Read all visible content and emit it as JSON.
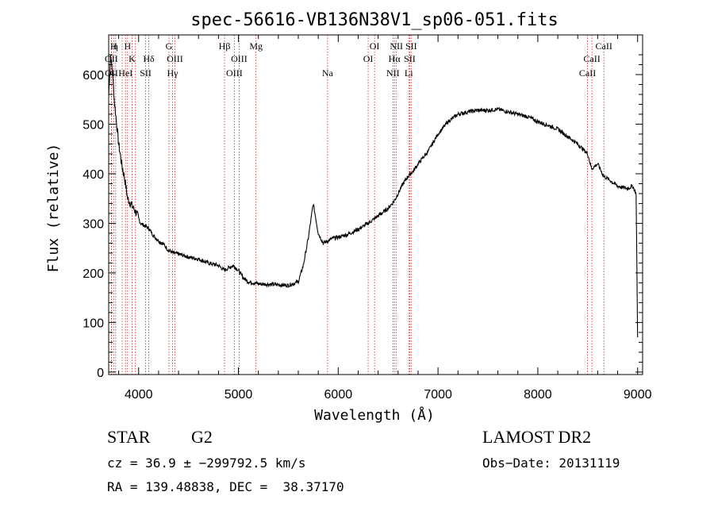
{
  "chart_data": {
    "type": "line",
    "title": "spec-56616-VB136N38V1_sp06-051.fits",
    "xlabel": "Wavelength (Å)",
    "ylabel": "Flux (relative)",
    "xlim": [
      3700,
      9050
    ],
    "ylim": [
      -5,
      680
    ],
    "xticks": [
      4000,
      5000,
      6000,
      7000,
      8000,
      9000
    ],
    "yticks": [
      0,
      100,
      200,
      300,
      400,
      500,
      600
    ],
    "grid": false,
    "line_color": "#000000",
    "marker_color": "#cc2222",
    "series": [
      {
        "x": [
          3700,
          3720,
          3740,
          3760,
          3780,
          3800,
          3830,
          3860,
          3890,
          3920,
          3950,
          3980,
          4020,
          4060,
          4100,
          4150,
          4200,
          4250,
          4300,
          4350,
          4400,
          4450,
          4500,
          4600,
          4700,
          4800,
          4860,
          4900,
          4950,
          5000,
          5050,
          5100,
          5150,
          5200,
          5300,
          5400,
          5500,
          5600,
          5650,
          5700,
          5750,
          5800,
          5850,
          5900,
          5950,
          6000,
          6100,
          6200,
          6300,
          6400,
          6500,
          6560,
          6600,
          6650,
          6700,
          6750,
          6800,
          6900,
          7000,
          7100,
          7200,
          7300,
          7400,
          7500,
          7600,
          7700,
          7800,
          7900,
          8000,
          8100,
          8200,
          8300,
          8400,
          8500,
          8540,
          8600,
          8660,
          8700,
          8800,
          8900,
          8950,
          8985,
          9000
        ],
        "y": [
          560,
          640,
          600,
          540,
          500,
          460,
          420,
          390,
          350,
          340,
          330,
          320,
          300,
          295,
          290,
          275,
          265,
          258,
          245,
          240,
          238,
          235,
          232,
          228,
          220,
          215,
          205,
          210,
          215,
          205,
          190,
          182,
          180,
          178,
          177,
          176,
          175,
          182,
          215,
          270,
          340,
          280,
          260,
          265,
          270,
          272,
          278,
          288,
          300,
          315,
          330,
          345,
          360,
          380,
          395,
          405,
          420,
          445,
          480,
          505,
          520,
          525,
          528,
          528,
          530,
          525,
          520,
          515,
          505,
          498,
          490,
          475,
          460,
          440,
          410,
          420,
          395,
          390,
          375,
          370,
          375,
          360,
          70
        ]
      }
    ],
    "lines": [
      {
        "x": 3727,
        "label": "OII",
        "row": 2
      },
      {
        "x": 3728,
        "label": "OII",
        "row": 3
      },
      {
        "x": 3750,
        "label": "H",
        "row": 1
      },
      {
        "x": 3770,
        "label": "η",
        "row": 1
      },
      {
        "x": 3835,
        "label": "",
        "row": 0
      },
      {
        "x": 3869,
        "label": "HeI",
        "row": 3
      },
      {
        "x": 3889,
        "label": "H",
        "row": 1
      },
      {
        "x": 3934,
        "label": "K",
        "row": 2
      },
      {
        "x": 3968,
        "label": "",
        "row": 0
      },
      {
        "x": 4070,
        "label": "SII",
        "row": 3
      },
      {
        "x": 4102,
        "label": "Hδ",
        "row": 2
      },
      {
        "x": 4304,
        "label": "G",
        "row": 1
      },
      {
        "x": 4340,
        "label": "Hγ",
        "row": 3
      },
      {
        "x": 4363,
        "label": "OIII",
        "row": 2
      },
      {
        "x": 4861,
        "label": "Hβ",
        "row": 1
      },
      {
        "x": 4959,
        "label": "OIII",
        "row": 3
      },
      {
        "x": 5007,
        "label": "OIII",
        "row": 2
      },
      {
        "x": 5176,
        "label": "Mg",
        "row": 1
      },
      {
        "x": 5893,
        "label": "Na",
        "row": 3
      },
      {
        "x": 6300,
        "label": "OI",
        "row": 2
      },
      {
        "x": 6364,
        "label": "OI",
        "row": 1
      },
      {
        "x": 6548,
        "label": "NII",
        "row": 3
      },
      {
        "x": 6563,
        "label": "Hα",
        "row": 2
      },
      {
        "x": 6583,
        "label": "NII",
        "row": 1
      },
      {
        "x": 6707,
        "label": "Li",
        "row": 3
      },
      {
        "x": 6716,
        "label": "SII",
        "row": 2
      },
      {
        "x": 6731,
        "label": "SII",
        "row": 1
      },
      {
        "x": 8498,
        "label": "CaII",
        "row": 3
      },
      {
        "x": 8542,
        "label": "CaII",
        "row": 2
      },
      {
        "x": 8662,
        "label": "CaII",
        "row": 1
      }
    ]
  },
  "info": {
    "object_class": "STAR",
    "subclass": "G2",
    "survey": "LAMOST DR2",
    "redshift": "cz = 36.9 ± −299792.5 km/s",
    "obs_date": "Obs−Date: 20131119",
    "coords": "RA = 139.48838, DEC =  38.37170"
  }
}
